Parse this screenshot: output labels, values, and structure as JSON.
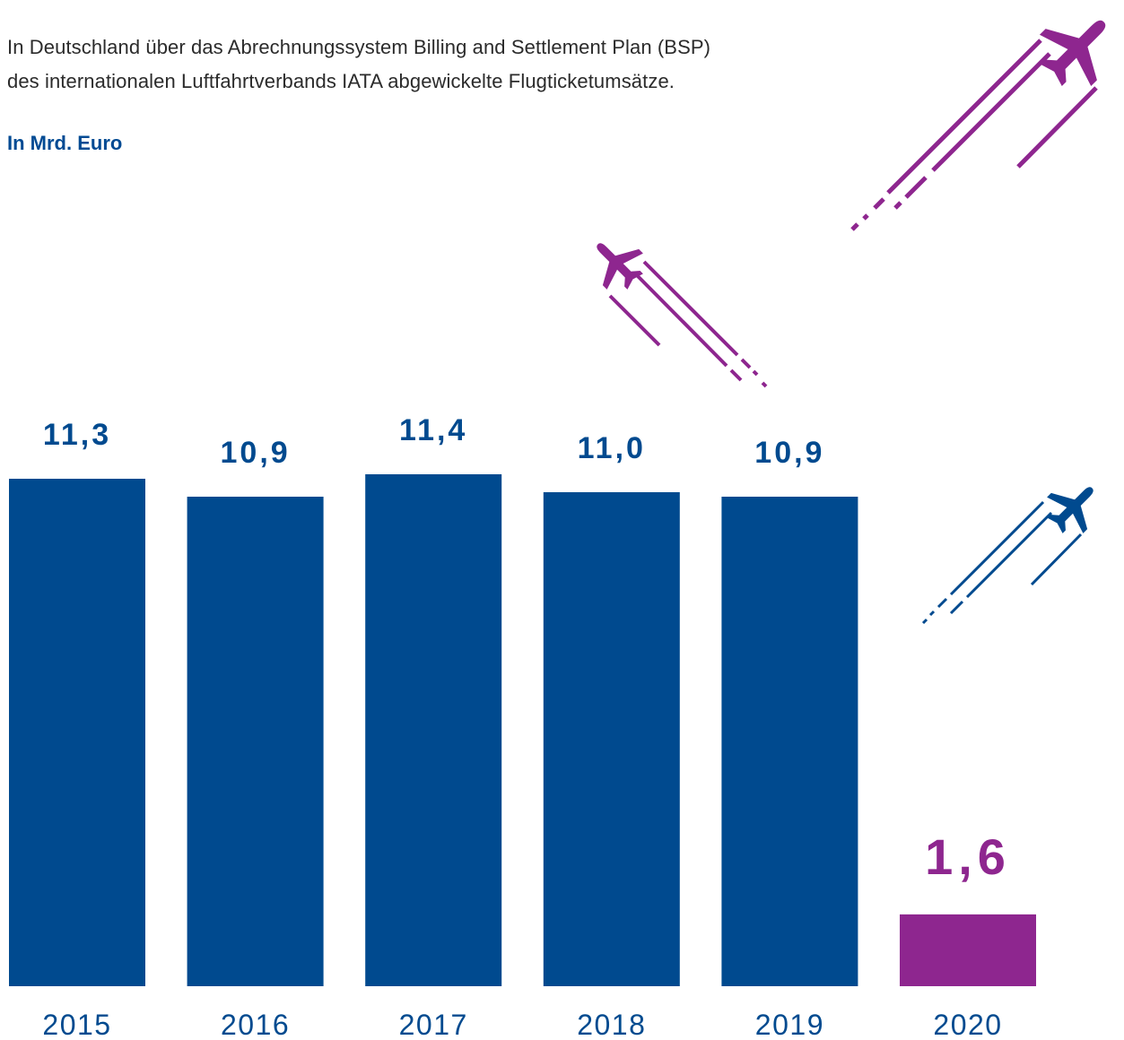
{
  "description": {
    "line1": "In Deutschland über das Abrechnungssystem Billing and Settlement Plan (BSP)",
    "line2": "des internationalen Luftfahrtverbands IATA abgewickelte Flugticketumsätze."
  },
  "unit_label": "In Mrd. Euro",
  "colors": {
    "primary": "#004a8f",
    "highlight": "#8e268f",
    "text": "#2b2b2b"
  },
  "icons": [
    "airplane-icon-large-purple",
    "airplane-icon-small-purple",
    "airplane-icon-blue"
  ],
  "chart_data": {
    "type": "bar",
    "categories": [
      "2015",
      "2016",
      "2017",
      "2018",
      "2019",
      "2020"
    ],
    "values": [
      11.3,
      10.9,
      11.4,
      11.0,
      10.9,
      1.6
    ],
    "value_labels": [
      "11,3",
      "10,9",
      "11,4",
      "11,0",
      "10,9",
      "1,6"
    ],
    "highlight_index": 5,
    "ylim": [
      0,
      11.4
    ],
    "grid": false,
    "legend": "none"
  }
}
